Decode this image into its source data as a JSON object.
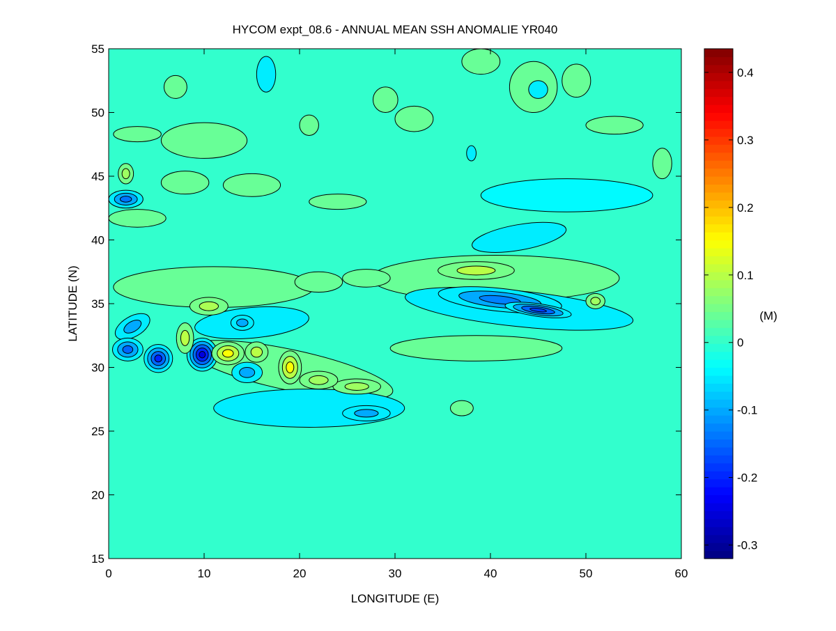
{
  "chart_data": {
    "type": "heatmap",
    "subtype": "filled-contour",
    "title": "HYCOM expt_08.6 - ANNUAL MEAN SSH ANOMALIE YR040",
    "xlabel": "LONGITUDE (E)",
    "ylabel": "LATITUDE (N)",
    "xlim": [
      0,
      60
    ],
    "ylim": [
      15,
      55
    ],
    "xticks": [
      0,
      10,
      20,
      30,
      40,
      50,
      60
    ],
    "yticks": [
      15,
      20,
      25,
      30,
      35,
      40,
      45,
      50,
      55
    ],
    "colorbar": {
      "label": "(M)",
      "colormap": "jet",
      "range": [
        -0.32,
        0.435
      ],
      "ticks": [
        -0.3,
        -0.2,
        -0.1,
        0,
        0.1,
        0.2,
        0.3,
        0.4
      ],
      "tick_labels": [
        "-0.3",
        "-0.2",
        "-0.1",
        "0",
        "0.1",
        "0.2",
        "0.3",
        "0.4"
      ]
    },
    "background_value": 0,
    "features": [
      {
        "lon": 11,
        "lat": 36.3,
        "rlon": 10.5,
        "rlat": 1.6,
        "value": 0.04,
        "rot": 0
      },
      {
        "lon": 19,
        "lat": 29.8,
        "rlon": 11,
        "rlat": 1.6,
        "value": 0.04,
        "rot": 12
      },
      {
        "lon": 15,
        "lat": 33.5,
        "rlon": 6,
        "rlat": 1.2,
        "value": -0.05,
        "rot": -5
      },
      {
        "lon": 21,
        "lat": 26.8,
        "rlon": 10,
        "rlat": 1.5,
        "value": -0.05,
        "rot": 0
      },
      {
        "lon": 27,
        "lat": 26.4,
        "rlon": 2.5,
        "rlat": 0.6,
        "value": -0.11,
        "rot": 0
      },
      {
        "lon": 26,
        "lat": 28.5,
        "rlon": 2.5,
        "rlat": 0.6,
        "value": 0.08,
        "rot": 0
      },
      {
        "lon": 22,
        "lat": 29,
        "rlon": 2,
        "rlat": 0.7,
        "value": 0.08,
        "rot": 0
      },
      {
        "lon": 14.5,
        "lat": 29.6,
        "rlon": 1.6,
        "rlat": 0.8,
        "value": -0.12,
        "rot": 0
      },
      {
        "lon": 14,
        "lat": 33.5,
        "rlon": 1.2,
        "rlat": 0.6,
        "value": -0.1,
        "rot": 0
      },
      {
        "lon": 2.5,
        "lat": 33.2,
        "rlon": 2,
        "rlat": 0.8,
        "value": -0.1,
        "rot": -30
      },
      {
        "lon": 2,
        "lat": 31.4,
        "rlon": 1.6,
        "rlat": 0.9,
        "value": -0.15,
        "rot": 0
      },
      {
        "lon": 5.2,
        "lat": 30.7,
        "rlon": 1.5,
        "rlat": 1.1,
        "value": -0.2,
        "rot": 0
      },
      {
        "lon": 9.8,
        "lat": 31,
        "rlon": 1.6,
        "rlat": 1.3,
        "value": -0.26,
        "rot": 0
      },
      {
        "lon": 8,
        "lat": 32.3,
        "rlon": 0.9,
        "rlat": 1.2,
        "value": 0.1,
        "rot": 0
      },
      {
        "lon": 12.5,
        "lat": 31.1,
        "rlon": 1.7,
        "rlat": 0.9,
        "value": 0.15,
        "rot": 0
      },
      {
        "lon": 15.5,
        "lat": 31.2,
        "rlon": 1.2,
        "rlat": 0.8,
        "value": 0.1,
        "rot": 0
      },
      {
        "lon": 19,
        "lat": 30,
        "rlon": 1.2,
        "rlat": 1.3,
        "value": 0.17,
        "rot": 0
      },
      {
        "lon": 10.5,
        "lat": 34.8,
        "rlon": 2,
        "rlat": 0.7,
        "value": 0.09,
        "rot": 0
      },
      {
        "lon": 1.8,
        "lat": 43.2,
        "rlon": 1.8,
        "rlat": 0.7,
        "value": -0.14,
        "rot": 0
      },
      {
        "lon": 1.8,
        "lat": 45.2,
        "rlon": 0.8,
        "rlat": 0.8,
        "value": 0.08,
        "rot": 0
      },
      {
        "lon": 40.5,
        "lat": 37,
        "rlon": 13,
        "rlat": 1.8,
        "value": 0.04,
        "rot": 0
      },
      {
        "lon": 38.5,
        "lat": 37.6,
        "rlon": 4,
        "rlat": 0.7,
        "value": 0.12,
        "rot": 0
      },
      {
        "lon": 43,
        "lat": 34.6,
        "rlon": 12,
        "rlat": 1.4,
        "value": -0.05,
        "rot": 6
      },
      {
        "lon": 41,
        "lat": 35.3,
        "rlon": 6.5,
        "rlat": 0.9,
        "value": -0.13,
        "rot": 6
      },
      {
        "lon": 45,
        "lat": 34.5,
        "rlon": 3.5,
        "rlat": 0.5,
        "value": -0.18,
        "rot": 8
      },
      {
        "lon": 38.5,
        "lat": 31.5,
        "rlon": 9,
        "rlat": 1,
        "value": 0.04,
        "rot": 0
      },
      {
        "lon": 43,
        "lat": 40.2,
        "rlon": 5,
        "rlat": 1,
        "value": -0.05,
        "rot": -10
      },
      {
        "lon": 48,
        "lat": 43.5,
        "rlon": 9,
        "rlat": 1.3,
        "value": -0.04,
        "rot": 0
      },
      {
        "lon": 10,
        "lat": 47.8,
        "rlon": 4.5,
        "rlat": 1.4,
        "value": 0.04,
        "rot": 0
      },
      {
        "lon": 15,
        "lat": 44.3,
        "rlon": 3,
        "rlat": 0.9,
        "value": 0.04,
        "rot": 0
      },
      {
        "lon": 8,
        "lat": 44.5,
        "rlon": 2.5,
        "rlat": 0.9,
        "value": 0.04,
        "rot": 0
      },
      {
        "lon": 3,
        "lat": 48.3,
        "rlon": 2.5,
        "rlat": 0.6,
        "value": 0.04,
        "rot": 0
      },
      {
        "lon": 3,
        "lat": 41.7,
        "rlon": 3,
        "rlat": 0.7,
        "value": 0.04,
        "rot": 0
      },
      {
        "lon": 16.5,
        "lat": 53,
        "rlon": 1,
        "rlat": 1.4,
        "value": -0.05,
        "rot": 0
      },
      {
        "lon": 7,
        "lat": 52,
        "rlon": 1.2,
        "rlat": 0.9,
        "value": 0.04,
        "rot": 0
      },
      {
        "lon": 44.5,
        "lat": 52,
        "rlon": 2.5,
        "rlat": 2,
        "value": 0.04,
        "rot": 0
      },
      {
        "lon": 45,
        "lat": 51.8,
        "rlon": 1,
        "rlat": 0.7,
        "value": -0.05,
        "rot": 0
      },
      {
        "lon": 49,
        "lat": 52.5,
        "rlon": 1.5,
        "rlat": 1.3,
        "value": 0.04,
        "rot": 0
      },
      {
        "lon": 53,
        "lat": 49,
        "rlon": 3,
        "rlat": 0.7,
        "value": 0.04,
        "rot": 0
      },
      {
        "lon": 39,
        "lat": 54,
        "rlon": 2,
        "rlat": 1,
        "value": 0.04,
        "rot": 0
      },
      {
        "lon": 38,
        "lat": 46.8,
        "rlon": 0.5,
        "rlat": 0.6,
        "value": -0.07,
        "rot": 0
      },
      {
        "lon": 32,
        "lat": 49.5,
        "rlon": 2,
        "rlat": 1,
        "value": 0.04,
        "rot": 0
      },
      {
        "lon": 29,
        "lat": 51,
        "rlon": 1.3,
        "rlat": 1,
        "value": 0.04,
        "rot": 0
      },
      {
        "lon": 21,
        "lat": 49,
        "rlon": 1,
        "rlat": 0.8,
        "value": 0.04,
        "rot": 0
      },
      {
        "lon": 24,
        "lat": 43,
        "rlon": 3,
        "rlat": 0.6,
        "value": 0.04,
        "rot": 0
      },
      {
        "lon": 58,
        "lat": 46,
        "rlon": 1,
        "rlat": 1.2,
        "value": 0.04,
        "rot": 0
      },
      {
        "lon": 22,
        "lat": 36.7,
        "rlon": 2.5,
        "rlat": 0.8,
        "value": 0.04,
        "rot": 0
      },
      {
        "lon": 27,
        "lat": 37,
        "rlon": 2.5,
        "rlat": 0.7,
        "value": 0.04,
        "rot": 0
      },
      {
        "lon": 51,
        "lat": 35.2,
        "rlon": 1,
        "rlat": 0.6,
        "value": 0.08,
        "rot": 0
      },
      {
        "lon": 37,
        "lat": 26.8,
        "rlon": 1.2,
        "rlat": 0.6,
        "value": 0.04,
        "rot": 0
      }
    ]
  }
}
